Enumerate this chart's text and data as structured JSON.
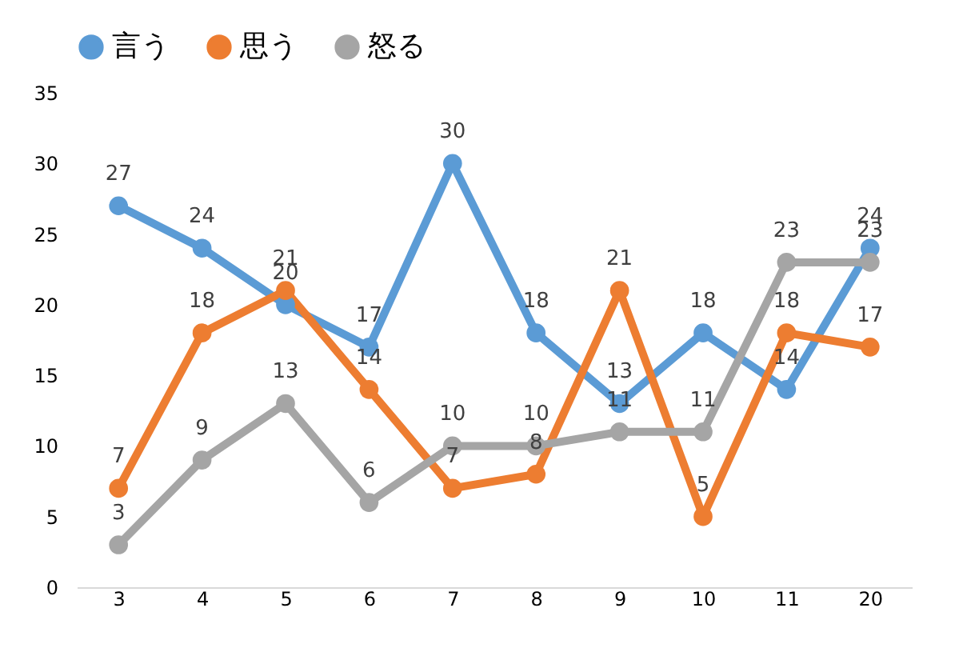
{
  "chart_data": {
    "type": "line",
    "categories": [
      "3",
      "4",
      "5",
      "6",
      "7",
      "8",
      "9",
      "10",
      "11",
      "20"
    ],
    "series": [
      {
        "name": "言う",
        "color": "#5b9bd5",
        "values": [
          27,
          24,
          20,
          17,
          30,
          18,
          13,
          18,
          14,
          24
        ]
      },
      {
        "name": "思う",
        "color": "#ed7d31",
        "values": [
          7,
          18,
          21,
          14,
          7,
          8,
          21,
          5,
          18,
          17
        ]
      },
      {
        "name": "怒る",
        "color": "#a5a5a5",
        "values": [
          3,
          9,
          13,
          6,
          10,
          10,
          11,
          11,
          23,
          23
        ]
      }
    ],
    "ylim": [
      0,
      35
    ],
    "yticks": [
      0,
      5,
      10,
      15,
      20,
      25,
      30,
      35
    ],
    "grid": false,
    "legend": "top",
    "marker": "circle",
    "line_style": "solid",
    "data_labels": true
  }
}
